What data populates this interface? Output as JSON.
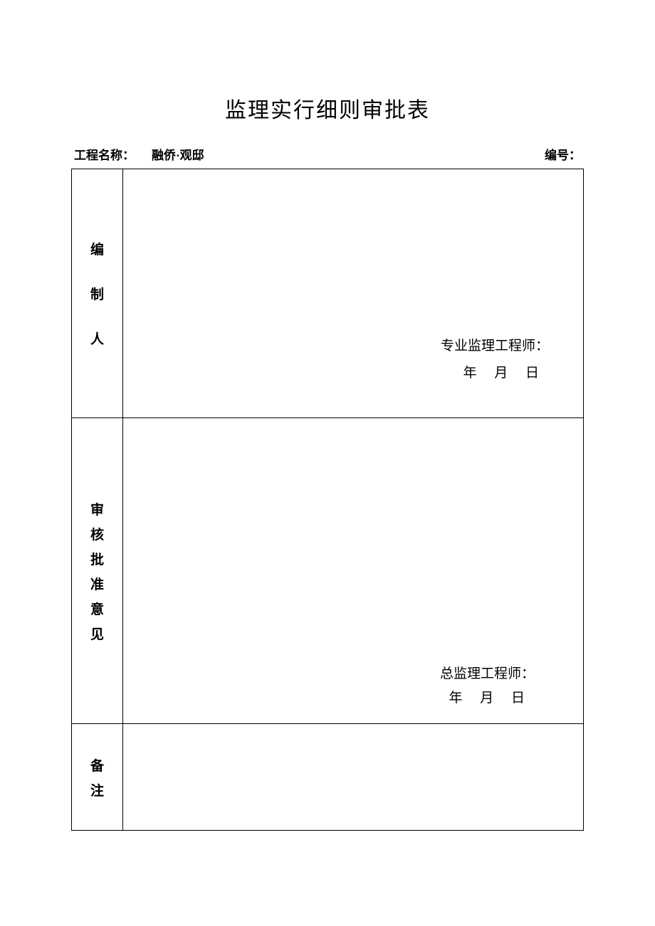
{
  "document": {
    "title": "监理实行细则审批表",
    "header": {
      "project_label": "工程名称：",
      "project_name": "融侨·观邸",
      "serial_label": "编号："
    },
    "rows": {
      "row1": {
        "label_chars": [
          "编",
          "制",
          "人"
        ],
        "signature_label": "专业监理工程师：",
        "date_year": "年",
        "date_month": "月",
        "date_day": "日"
      },
      "row2": {
        "label_chars": [
          "审",
          "核",
          "批",
          "准",
          "意",
          "见"
        ],
        "signature_label": "总监理工程师：",
        "date_year": "年",
        "date_month": "月",
        "date_day": "日"
      },
      "row3": {
        "label_chars": [
          "备",
          "注"
        ]
      }
    }
  },
  "style": {
    "background_color": "#ffffff",
    "text_color": "#000000",
    "border_color": "#000000",
    "title_fontsize": 30,
    "body_fontsize": 19,
    "header_fontsize": 17
  }
}
